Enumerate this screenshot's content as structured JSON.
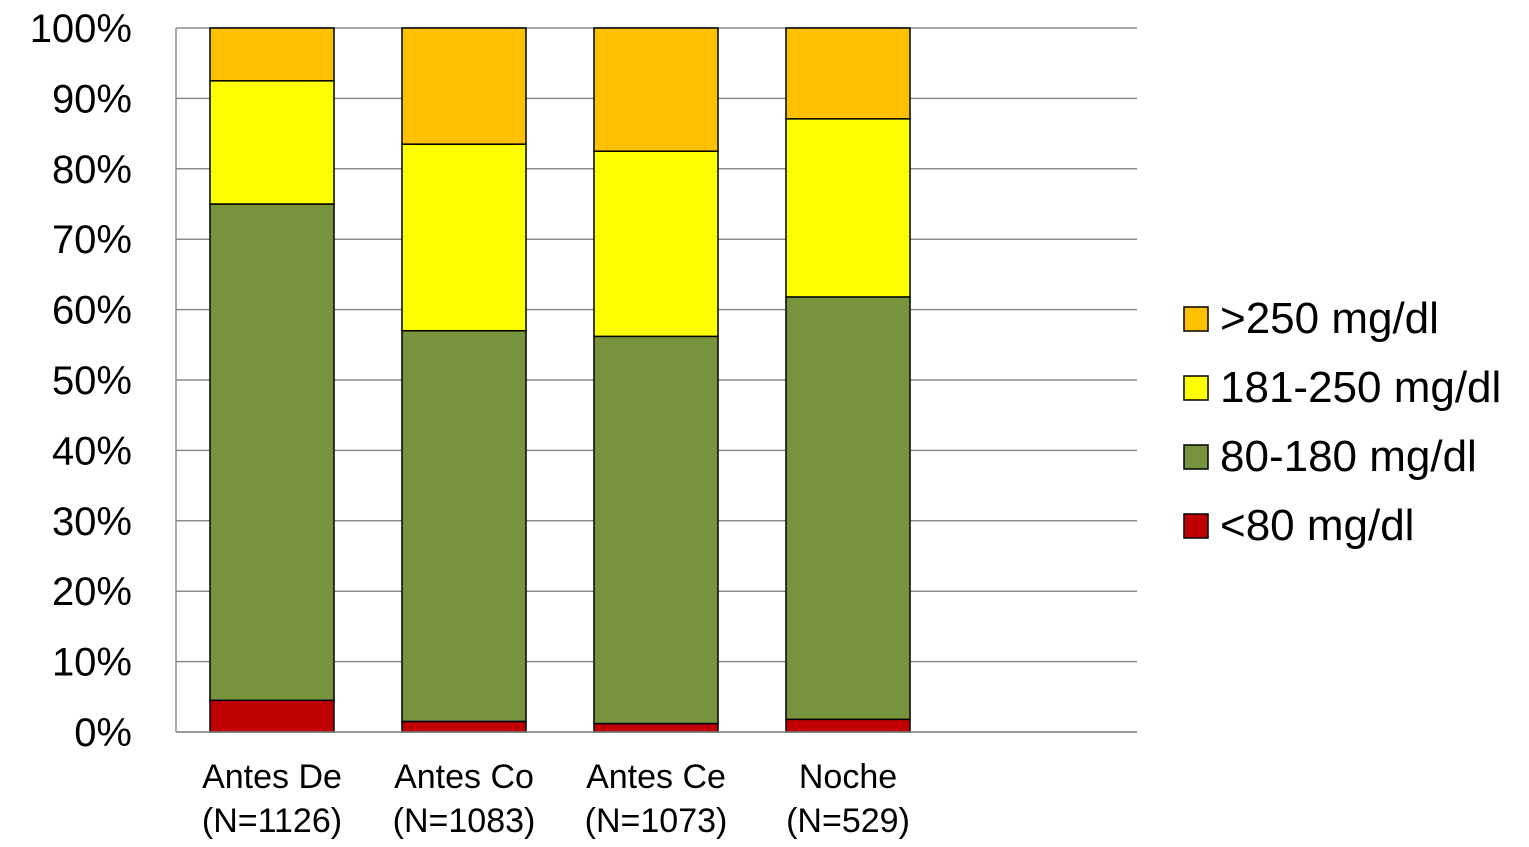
{
  "chart_data": {
    "type": "bar",
    "stacked": true,
    "normalized_percent": true,
    "categories": [
      [
        "Antes De",
        "(N=1126)"
      ],
      [
        "Antes Co",
        "(N=1083)"
      ],
      [
        "Antes Ce",
        "(N=1073)"
      ],
      [
        "Noche",
        "(N=529)"
      ]
    ],
    "series": [
      {
        "name": "<80 mg/dl",
        "color": "#C00000",
        "values": [
          4.5,
          1.5,
          1.2,
          1.8
        ]
      },
      {
        "name": "80-180 mg/dl",
        "color": "#77933C",
        "values": [
          70.5,
          55.5,
          55.0,
          60.0
        ]
      },
      {
        "name": "181-250 mg/dl",
        "color": "#FFFF00",
        "values": [
          17.5,
          26.5,
          26.3,
          25.3
        ]
      },
      {
        "name": ">250 mg/dl",
        "color": "#FFC000",
        "values": [
          7.5,
          16.5,
          17.5,
          12.9
        ]
      }
    ],
    "y_ticks": [
      "0%",
      "10%",
      "20%",
      "30%",
      "40%",
      "50%",
      "60%",
      "70%",
      "80%",
      "90%",
      "100%"
    ],
    "ylim": [
      0,
      100
    ],
    "grid": true,
    "legend_position": "right",
    "legend_order": [
      ">250 mg/dl",
      "181-250 mg/dl",
      "80-180 mg/dl",
      "<80 mg/dl"
    ],
    "title": "",
    "xlabel": "",
    "ylabel": ""
  }
}
